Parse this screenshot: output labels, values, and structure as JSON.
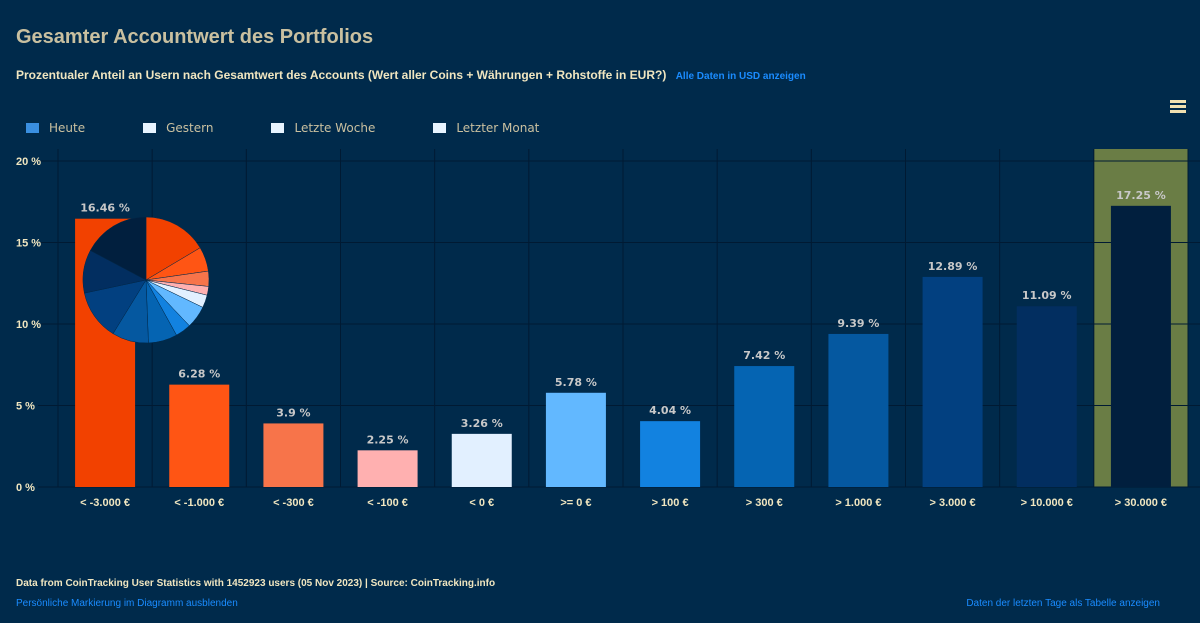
{
  "header": {
    "title": "Gesamter Accountwert des Portfolios",
    "subtitle": "Prozentualer Anteil an Usern nach Gesamtwert des Accounts (Wert aller Coins + Währungen + Rohstoffe in EUR?)",
    "usd_link": "Alle Daten in USD anzeigen",
    "menu_icon": "hamburger-menu-icon"
  },
  "legend": [
    {
      "label": "Heute",
      "color": "#3a8fe0"
    },
    {
      "label": "Gestern",
      "color": "#e8f4ff"
    },
    {
      "label": "Letzte Woche",
      "color": "#e8f4ff"
    },
    {
      "label": "Letzter Monat",
      "color": "#e8f4ff"
    }
  ],
  "chart_data": {
    "type": "bar",
    "title": "",
    "xlabel": "",
    "ylabel": "",
    "ylim": [
      0,
      20
    ],
    "yticks": [
      "0 %",
      "5 %",
      "10 %",
      "15 %",
      "20 %"
    ],
    "grid": true,
    "categories": [
      "< -3.000 €",
      "< -1.000 €",
      "< -300 €",
      "< -100 €",
      "< 0 €",
      ">= 0 €",
      "> 100 €",
      "> 300 €",
      "> 1.000 €",
      "> 3.000 €",
      "> 10.000 €",
      "> 30.000 €"
    ],
    "values": [
      16.46,
      6.28,
      3.9,
      2.25,
      3.26,
      5.78,
      4.04,
      7.42,
      9.39,
      12.89,
      11.09,
      17.25
    ],
    "data_labels": [
      "16.46 %",
      "6.28 %",
      "3.9 %",
      "2.25 %",
      "3.26 %",
      "5.78 %",
      "4.04 %",
      "7.42 %",
      "9.39 %",
      "12.89 %",
      "11.09 %",
      "17.25 %"
    ],
    "colors": [
      "#f24100",
      "#ff5514",
      "#f7744a",
      "#ffb0b0",
      "#e2f0ff",
      "#62b8ff",
      "#1282e0",
      "#0564b2",
      "#0558a0",
      "#024080",
      "#022e60",
      "#011f3e"
    ],
    "highlighted_category": "> 30.000 €",
    "highlight_color": "#6a7d45",
    "inset_pie": {
      "type": "pie",
      "values_from": "values"
    }
  },
  "footer": {
    "source": "Data from CoinTracking User Statistics with 1452923 users (05 Nov 2023) | Source: CoinTracking.info",
    "hide_marker_link": "Persönliche Markierung im Diagramm ausblenden",
    "table_link": "Daten der letzten Tage als Tabelle anzeigen"
  }
}
